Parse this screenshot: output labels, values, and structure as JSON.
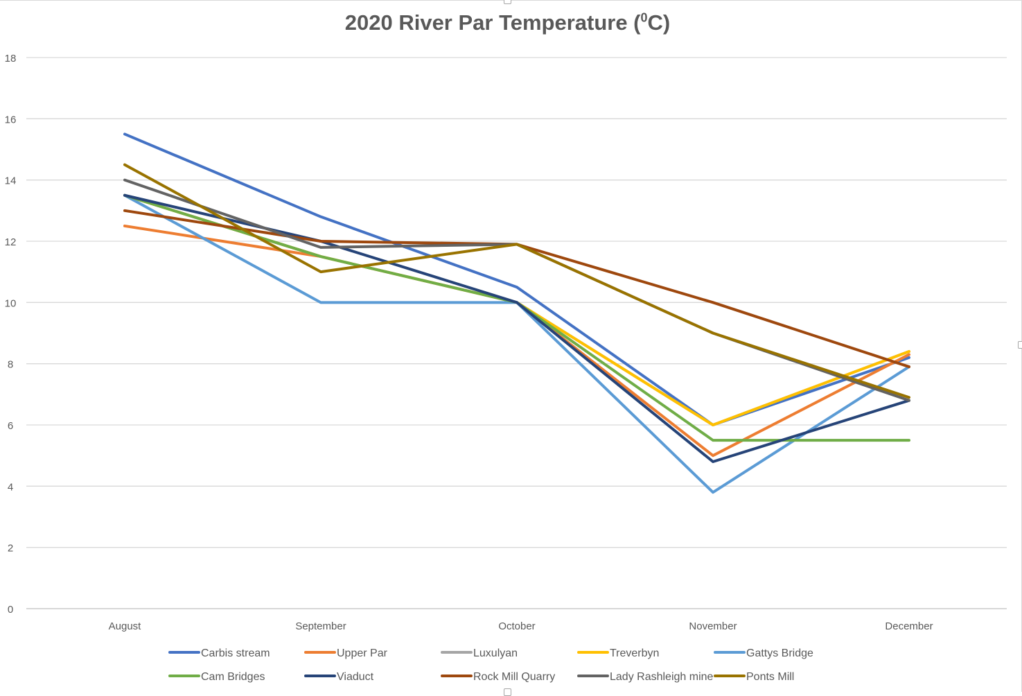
{
  "chart_data": {
    "type": "line",
    "title_main": "2020 River Par Temperature (",
    "title_sup": "0",
    "title_end": "C)",
    "categories": [
      "August",
      "September",
      "October",
      "November",
      "December"
    ],
    "ylim": [
      0,
      18
    ],
    "yticks": [
      0,
      2,
      4,
      6,
      8,
      10,
      12,
      14,
      16,
      18
    ],
    "grid": true,
    "legend_position": "bottom",
    "series": [
      {
        "name": "Carbis stream",
        "color": "#4472C4",
        "values": [
          15.5,
          12.8,
          10.5,
          6.0,
          8.2
        ]
      },
      {
        "name": "Upper Par",
        "color": "#ED7D31",
        "values": [
          12.5,
          11.5,
          10.0,
          5.0,
          8.3
        ]
      },
      {
        "name": "Luxulyan",
        "color": "#A5A5A5",
        "values": [
          13.5,
          11.5,
          10.0,
          6.0,
          8.4
        ]
      },
      {
        "name": "Treverbyn",
        "color": "#FFC000",
        "values": [
          13.5,
          11.5,
          10.0,
          6.0,
          8.4
        ]
      },
      {
        "name": "Gattys Bridge",
        "color": "#5B9BD5",
        "values": [
          13.5,
          10.0,
          10.0,
          3.8,
          7.9
        ]
      },
      {
        "name": "Cam Bridges",
        "color": "#70AD47",
        "values": [
          13.5,
          11.5,
          10.0,
          5.5,
          5.5
        ]
      },
      {
        "name": "Viaduct",
        "color": "#264478",
        "values": [
          13.5,
          12.0,
          10.0,
          4.8,
          6.8
        ]
      },
      {
        "name": "Rock Mill Quarry",
        "color": "#9E480E",
        "values": [
          13.0,
          12.0,
          11.9,
          10.0,
          7.9
        ]
      },
      {
        "name": "Lady Rashleigh mine",
        "color": "#636363",
        "values": [
          14.0,
          11.8,
          11.9,
          9.0,
          6.8
        ]
      },
      {
        "name": "Ponts Mill",
        "color": "#997300",
        "values": [
          14.5,
          11.0,
          11.9,
          9.0,
          6.9
        ]
      }
    ]
  }
}
